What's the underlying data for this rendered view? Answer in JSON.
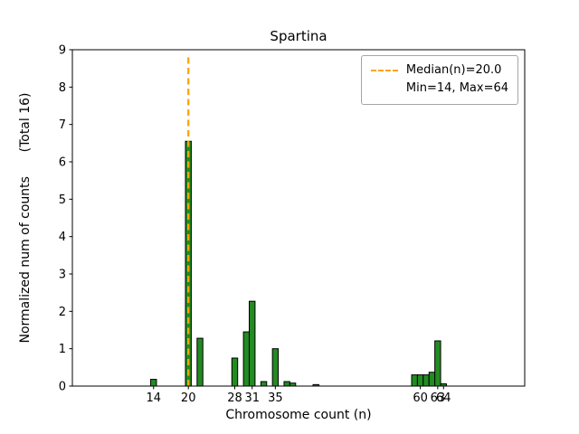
{
  "chart_data": {
    "type": "bar",
    "title": "Spartina",
    "xlabel": "Chromosome count (n)",
    "ylabel": "Normalized num of counts      (Total 16)",
    "xlim": [
      0,
      78
    ],
    "ylim": [
      0,
      9
    ],
    "xticks": [
      14,
      20,
      28,
      31,
      35,
      60,
      63,
      64
    ],
    "yticks": [
      0,
      1,
      2,
      3,
      4,
      5,
      6,
      7,
      8,
      9
    ],
    "grid": false,
    "bar_width": 1,
    "bar_color": "#228B22",
    "bar_edge_color": "#000000",
    "bars": [
      {
        "x": 14,
        "h": 0.18
      },
      {
        "x": 20,
        "h": 6.55
      },
      {
        "x": 22,
        "h": 1.28
      },
      {
        "x": 28,
        "h": 0.75
      },
      {
        "x": 30,
        "h": 1.45
      },
      {
        "x": 31,
        "h": 2.27
      },
      {
        "x": 33,
        "h": 0.12
      },
      {
        "x": 35,
        "h": 1.0
      },
      {
        "x": 37,
        "h": 0.12
      },
      {
        "x": 38,
        "h": 0.08
      },
      {
        "x": 42,
        "h": 0.04
      },
      {
        "x": 59,
        "h": 0.3
      },
      {
        "x": 60,
        "h": 0.3
      },
      {
        "x": 61,
        "h": 0.3
      },
      {
        "x": 62,
        "h": 0.37
      },
      {
        "x": 63,
        "h": 1.21
      },
      {
        "x": 64,
        "h": 0.06
      }
    ],
    "median_line": {
      "x": 20,
      "y_top": 8.8,
      "color": "#FFA500",
      "style": "dashed"
    },
    "legend": {
      "position": "upper right",
      "entries": [
        "Median(n)=20.0",
        "Min=14, Max=64"
      ]
    }
  }
}
